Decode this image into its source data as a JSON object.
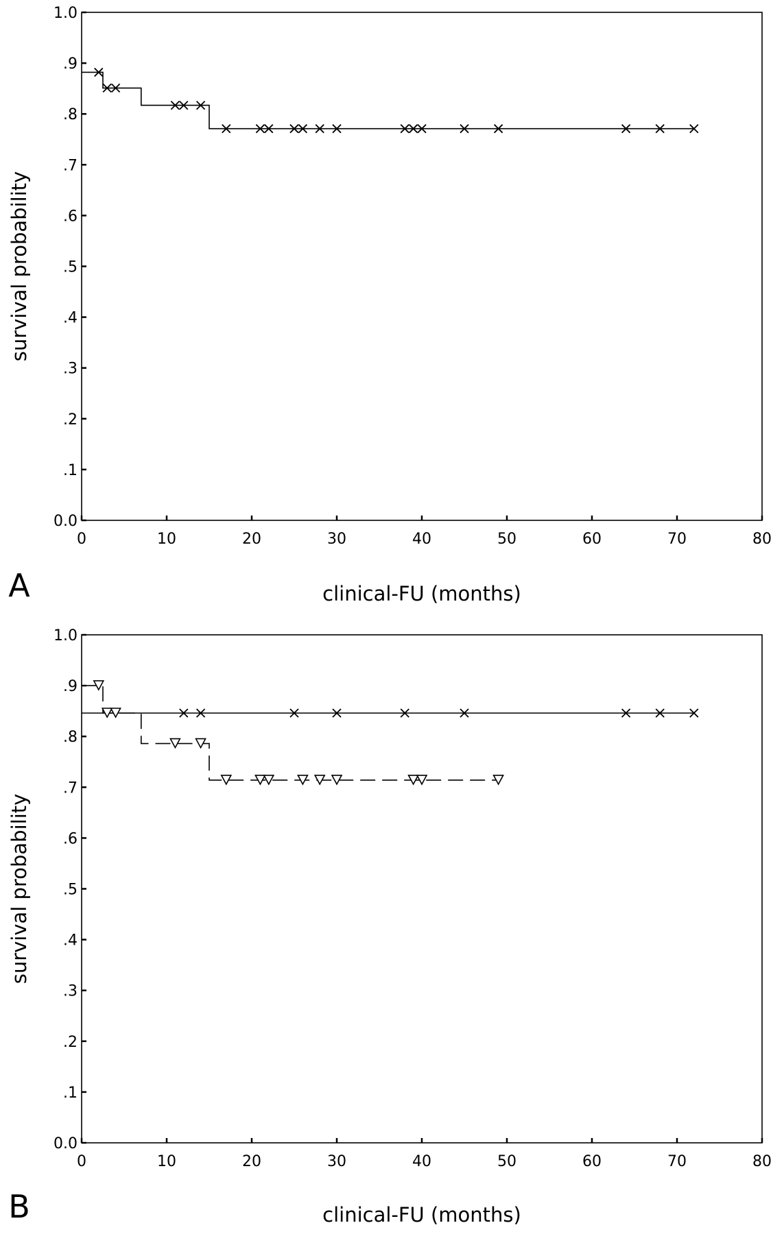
{
  "chart_data": [
    {
      "panel_label": "A",
      "type": "line",
      "xlabel": "clinical-FU (months)",
      "ylabel": "survival probability",
      "xlim": [
        0,
        80
      ],
      "ylim": [
        0,
        1
      ],
      "xticks": [
        "0",
        "10",
        "20",
        "30",
        "40",
        "50",
        "60",
        "70",
        "80"
      ],
      "yticks": [
        "0.0",
        ".1",
        ".2",
        ".3",
        ".4",
        ".5",
        ".6",
        ".7",
        ".8",
        ".9",
        "1.0"
      ],
      "grid": false,
      "series": [
        {
          "style": "solid",
          "censor_marker": "x",
          "steps": [
            [
              0,
              0.882
            ],
            [
              2.5,
              0.851
            ],
            [
              7,
              0.817
            ],
            [
              15,
              0.771
            ],
            [
              72,
              0.771
            ]
          ],
          "censored": [
            [
              2,
              0.882
            ],
            [
              3,
              0.851
            ],
            [
              4,
              0.851
            ],
            [
              11,
              0.817
            ],
            [
              12,
              0.817
            ],
            [
              14,
              0.817
            ],
            [
              17,
              0.771
            ],
            [
              21,
              0.771
            ],
            [
              22,
              0.771
            ],
            [
              25,
              0.771
            ],
            [
              26,
              0.771
            ],
            [
              28,
              0.771
            ],
            [
              30,
              0.771
            ],
            [
              38,
              0.771
            ],
            [
              39,
              0.771
            ],
            [
              40,
              0.771
            ],
            [
              45,
              0.771
            ],
            [
              49,
              0.771
            ],
            [
              64,
              0.771
            ],
            [
              68,
              0.771
            ],
            [
              72,
              0.771
            ]
          ]
        }
      ]
    },
    {
      "panel_label": "B",
      "type": "line",
      "xlabel": "clinical-FU (months)",
      "ylabel": "survival probability",
      "xlim": [
        0,
        80
      ],
      "ylim": [
        0,
        1
      ],
      "xticks": [
        "0",
        "10",
        "20",
        "30",
        "40",
        "50",
        "60",
        "70",
        "80"
      ],
      "yticks": [
        "0.0",
        ".1",
        ".2",
        ".3",
        ".4",
        ".5",
        ".6",
        ".7",
        ".8",
        ".9",
        "1.0"
      ],
      "grid": false,
      "series": [
        {
          "style": "solid",
          "censor_marker": "x",
          "steps": [
            [
              0,
              0.846
            ],
            [
              72,
              0.846
            ]
          ],
          "censored": [
            [
              12,
              0.846
            ],
            [
              14,
              0.846
            ],
            [
              25,
              0.846
            ],
            [
              30,
              0.846
            ],
            [
              38,
              0.846
            ],
            [
              45,
              0.846
            ],
            [
              64,
              0.846
            ],
            [
              68,
              0.846
            ],
            [
              72,
              0.846
            ]
          ]
        },
        {
          "style": "dashed",
          "censor_marker": "triangle-down",
          "steps": [
            [
              0,
              0.9
            ],
            [
              2.5,
              0.846
            ],
            [
              7,
              0.786
            ],
            [
              15,
              0.714
            ],
            [
              49,
              0.714
            ]
          ],
          "censored": [
            [
              2,
              0.9
            ],
            [
              3,
              0.846
            ],
            [
              4,
              0.846
            ],
            [
              11,
              0.786
            ],
            [
              14,
              0.786
            ],
            [
              17,
              0.714
            ],
            [
              21,
              0.714
            ],
            [
              22,
              0.714
            ],
            [
              26,
              0.714
            ],
            [
              28,
              0.714
            ],
            [
              30,
              0.714
            ],
            [
              39,
              0.714
            ],
            [
              40,
              0.714
            ],
            [
              49,
              0.714
            ]
          ]
        }
      ]
    }
  ]
}
